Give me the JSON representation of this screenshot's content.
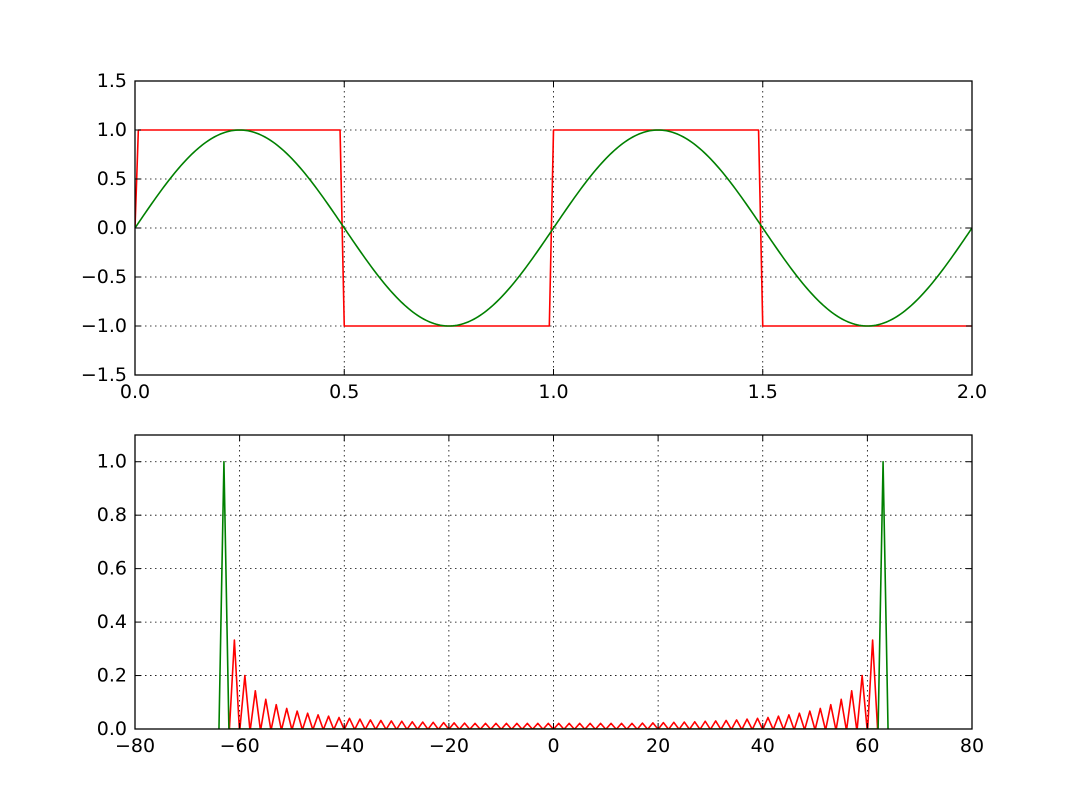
{
  "chart_data": [
    {
      "type": "line",
      "title": "",
      "xlabel": "",
      "ylabel": "",
      "xlim": [
        0.0,
        2.0
      ],
      "ylim": [
        -1.5,
        1.5
      ],
      "grid": true,
      "xticks": [
        "0.0",
        "0.5",
        "1.0",
        "1.5",
        "2.0"
      ],
      "yticks": [
        "−1.5",
        "−1.0",
        "−0.5",
        "0.0",
        "0.5",
        "1.0",
        "1.5"
      ],
      "series": [
        {
          "color": "#ff0000",
          "kind": "square wave",
          "x": [
            0.0,
            0.008,
            0.49,
            0.5,
            0.99,
            1.0,
            1.49,
            1.5,
            2.0
          ],
          "y": [
            0.0,
            1.0,
            1.0,
            -1.0,
            -1.0,
            1.0,
            1.0,
            -1.0,
            -1.0
          ]
        },
        {
          "color": "#008000",
          "kind": "sine wave",
          "x": [
            0.0,
            0.25,
            0.5,
            0.75,
            1.0,
            1.25,
            1.5,
            1.75,
            2.0
          ],
          "y": [
            0.0,
            1.0,
            0.0,
            -1.0,
            0.0,
            1.0,
            0.0,
            -1.0,
            0.0
          ]
        }
      ]
    },
    {
      "type": "line",
      "title": "",
      "xlabel": "",
      "ylabel": "",
      "xlim": [
        -80,
        80
      ],
      "ylim": [
        0.0,
        1.1
      ],
      "grid": true,
      "xticks": [
        "−80",
        "−60",
        "−40",
        "−20",
        "0",
        "20",
        "40",
        "60",
        "80"
      ],
      "yticks": [
        "0.0",
        "0.2",
        "0.4",
        "0.6",
        "0.8",
        "1.0"
      ],
      "series": [
        {
          "color": "#ff0000",
          "kind": "square wave spectrum",
          "x": [
            -61,
            -59,
            -57,
            -55,
            -53,
            -51,
            -49,
            -47,
            -45,
            -43,
            -41,
            -39,
            -37,
            -35,
            -33,
            -31,
            -29,
            -27,
            -25,
            -23,
            -21,
            -19,
            -17,
            -15,
            -13,
            -11,
            -9,
            -7,
            -5,
            -3,
            -1,
            1,
            3,
            5,
            7,
            9,
            11,
            13,
            15,
            17,
            19,
            21,
            23,
            25,
            27,
            29,
            31,
            33,
            35,
            37,
            39,
            41,
            43,
            45,
            47,
            49,
            51,
            53,
            55,
            57,
            59,
            61
          ],
          "y": [
            0.333,
            0.2,
            0.143,
            0.111,
            0.091,
            0.077,
            0.067,
            0.059,
            0.053,
            0.048,
            0.043,
            0.04,
            0.037,
            0.034,
            0.032,
            0.03,
            0.029,
            0.027,
            0.026,
            0.025,
            0.024,
            0.023,
            0.022,
            0.021,
            0.021,
            0.021,
            0.021,
            0.021,
            0.021,
            0.021,
            0.021,
            0.021,
            0.021,
            0.021,
            0.021,
            0.021,
            0.021,
            0.021,
            0.021,
            0.022,
            0.023,
            0.024,
            0.025,
            0.026,
            0.027,
            0.029,
            0.03,
            0.032,
            0.034,
            0.037,
            0.04,
            0.043,
            0.048,
            0.053,
            0.059,
            0.067,
            0.077,
            0.091,
            0.111,
            0.143,
            0.2,
            0.333
          ]
        },
        {
          "color": "#008000",
          "kind": "sine wave spectrum",
          "x": [
            -63,
            63
          ],
          "y": [
            1.0,
            1.0
          ]
        }
      ]
    }
  ]
}
